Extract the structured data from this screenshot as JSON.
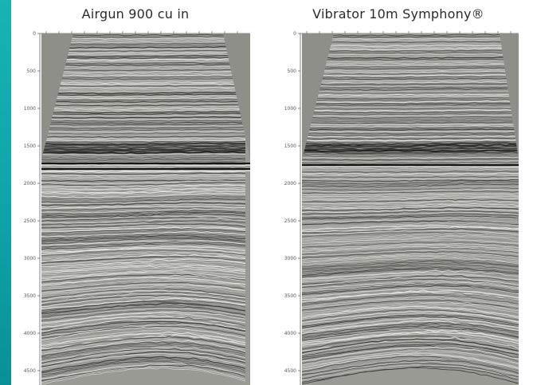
{
  "panels": [
    {
      "id": "airgun",
      "title": "Airgun 900 cu in"
    },
    {
      "id": "vibrator",
      "title": "Vibrator 10m Symphony®"
    }
  ],
  "depth_axis": {
    "ticks": [
      "0",
      "500",
      "1000",
      "1500",
      "2000",
      "2500",
      "3000",
      "3500",
      "4000",
      "4500"
    ]
  },
  "colors": {
    "background_teal": "#17b3b5",
    "seismic_gray": "#8a8a86",
    "panel_white": "#ffffff"
  }
}
